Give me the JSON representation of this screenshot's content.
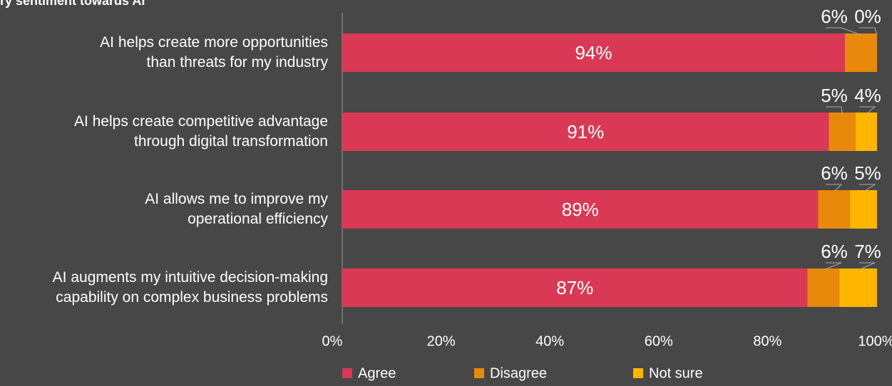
{
  "chart_data": {
    "type": "stacked-bar-horizontal",
    "title": "ry sentiment towards AI",
    "categories": [
      "AI helps create more opportunities\nthan threats for my industry",
      "AI helps create competitive advantage\nthrough digital transformation",
      "AI allows me to improve my\noperational efficiency",
      "AI augments my intuitive decision-making\ncapability on complex business problems"
    ],
    "series": [
      {
        "name": "Agree",
        "color": "#d93954",
        "values": [
          94,
          91,
          89,
          87
        ],
        "value_labels": [
          "94%",
          "91%",
          "89%",
          "87%"
        ]
      },
      {
        "name": "Disagree",
        "color": "#e8890c",
        "values": [
          6,
          5,
          6,
          6
        ],
        "value_labels": [
          "6%",
          "5%",
          "6%",
          "6%"
        ]
      },
      {
        "name": "Not sure",
        "color": "#ffb600",
        "values": [
          0,
          4,
          5,
          7
        ],
        "value_labels": [
          "0%",
          "4%",
          "5%",
          "7%"
        ]
      }
    ],
    "xlim": [
      0,
      100
    ],
    "xticks": [
      {
        "value": 0,
        "label": "0%"
      },
      {
        "value": 20,
        "label": "20%"
      },
      {
        "value": 40,
        "label": "40%"
      },
      {
        "value": 60,
        "label": "60%"
      },
      {
        "value": 80,
        "label": "80%"
      },
      {
        "value": 100,
        "label": "100%"
      }
    ],
    "legend": "bottom"
  }
}
